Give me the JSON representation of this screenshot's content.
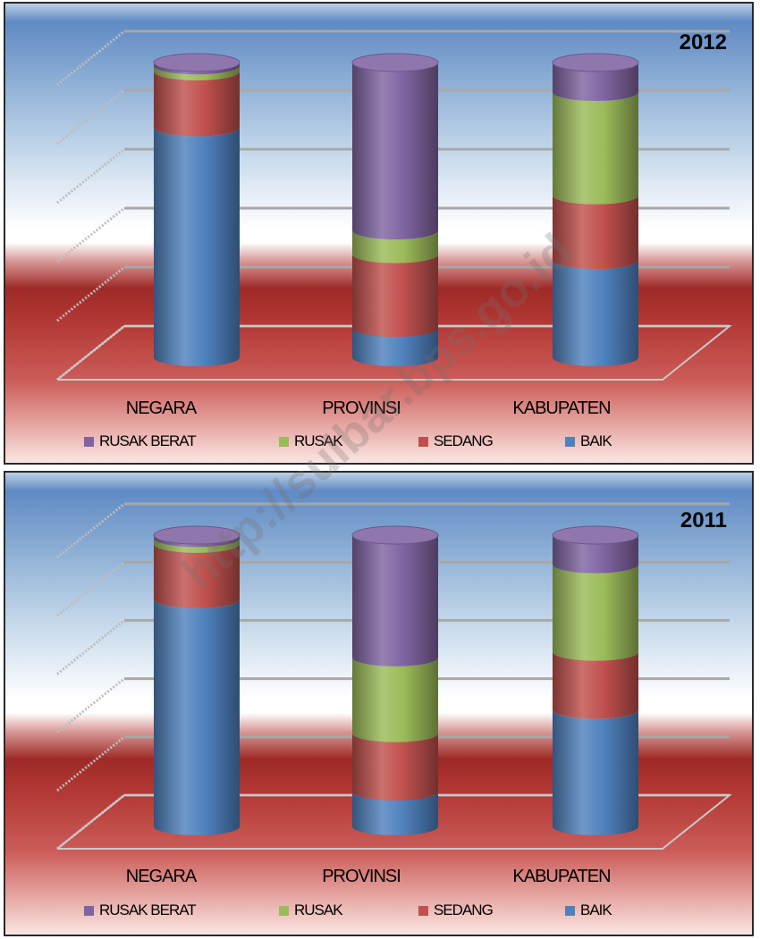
{
  "chart_data": [
    {
      "type": "bar",
      "stacked": true,
      "three_d": "cylinder",
      "title": "2012",
      "categories": [
        "NEGARA",
        "PROVINSI",
        "KABUPATEN"
      ],
      "series": [
        {
          "name": "BAIK",
          "values": [
            78,
            10,
            33
          ]
        },
        {
          "name": "SEDANG",
          "values": [
            19,
            25,
            22
          ]
        },
        {
          "name": "RUSAK",
          "values": [
            2,
            8,
            35
          ]
        },
        {
          "name": "RUSAK BERAT",
          "values": [
            1,
            57,
            10
          ]
        }
      ],
      "ylim": [
        0,
        100
      ],
      "grid": true,
      "legend_position": "bottom"
    },
    {
      "type": "bar",
      "stacked": true,
      "three_d": "cylinder",
      "title": "2011",
      "categories": [
        "NEGARA",
        "PROVINSI",
        "KABUPATEN"
      ],
      "series": [
        {
          "name": "BAIK",
          "values": [
            78,
            12,
            40
          ]
        },
        {
          "name": "SEDANG",
          "values": [
            19,
            20,
            20
          ]
        },
        {
          "name": "RUSAK",
          "values": [
            2,
            26,
            30
          ]
        },
        {
          "name": "RUSAK BERAT",
          "values": [
            1,
            42,
            10
          ]
        }
      ],
      "ylim": [
        0,
        100
      ],
      "grid": true,
      "legend_position": "bottom"
    }
  ],
  "colors": {
    "BAIK": "#4f81bd",
    "SEDANG": "#c0504d",
    "RUSAK": "#9bbb59",
    "RUSAK BERAT": "#8064a2"
  },
  "legend_order": [
    "RUSAK BERAT",
    "RUSAK",
    "SEDANG",
    "BAIK"
  ],
  "watermark": "http://sulbar.bps.go.id"
}
